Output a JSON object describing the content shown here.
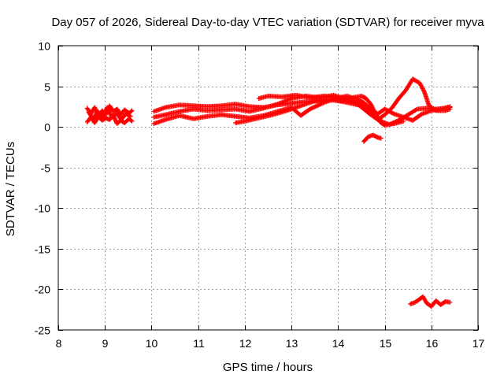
{
  "chart_data": {
    "type": "scatter",
    "title": "Day 057 of 2026, Sidereal Day-to-day VTEC variation (SDTVAR) for receiver myva",
    "xlabel": "GPS time / hours",
    "ylabel": "SDTVAR / TECUs",
    "xlim": [
      8,
      17
    ],
    "ylim": [
      -25,
      10
    ],
    "xticks": [
      8,
      9,
      10,
      11,
      12,
      13,
      14,
      15,
      16,
      17
    ],
    "yticks": [
      10,
      5,
      0,
      -5,
      -10,
      -15,
      -20,
      -25
    ],
    "xtick_labels": [
      "8",
      "9",
      "10",
      "11",
      "12",
      "13",
      "14",
      "15",
      "16",
      "17"
    ],
    "ytick_labels": [
      "10",
      "5",
      "0",
      "-5",
      "-10",
      "-15",
      "-20",
      "-25"
    ],
    "grid": true,
    "marker": "plus",
    "series": [
      {
        "name": "sdtvar",
        "color": "#ff0000",
        "tracks": [
          [
            [
              8.62,
              2.3
            ],
            [
              8.7,
              1.6
            ],
            [
              8.78,
              2.4
            ],
            [
              8.86,
              1.2
            ],
            [
              8.94,
              2.0
            ],
            [
              9.02,
              1.5
            ],
            [
              9.1,
              2.6
            ],
            [
              9.18,
              1.9
            ],
            [
              9.26,
              2.2
            ],
            [
              9.34,
              1.5
            ],
            [
              9.42,
              2.1
            ],
            [
              9.52,
              1.7
            ],
            [
              9.58,
              2.0
            ]
          ],
          [
            [
              8.62,
              0.6
            ],
            [
              8.7,
              1.2
            ],
            [
              8.78,
              0.5
            ],
            [
              8.86,
              1.3
            ],
            [
              8.94,
              0.8
            ],
            [
              9.02,
              1.1
            ],
            [
              9.1,
              0.9
            ],
            [
              9.18,
              1.4
            ],
            [
              9.26,
              0.4
            ],
            [
              9.34,
              0.8
            ],
            [
              9.42,
              0.5
            ],
            [
              9.52,
              1.0
            ],
            [
              9.58,
              0.7
            ]
          ],
          [
            [
              8.65,
              1.8
            ],
            [
              8.75,
              1.0
            ],
            [
              8.85,
              1.9
            ],
            [
              8.95,
              1.2
            ],
            [
              9.05,
              2.4
            ],
            [
              9.15,
              1.2
            ],
            [
              9.25,
              1.7
            ],
            [
              9.35,
              0.9
            ],
            [
              9.45,
              1.6
            ],
            [
              9.55,
              1.3
            ]
          ],
          [
            [
              10.05,
              1.9
            ],
            [
              10.3,
              2.4
            ],
            [
              10.6,
              2.7
            ],
            [
              10.9,
              2.6
            ],
            [
              11.2,
              2.5
            ],
            [
              11.5,
              2.6
            ],
            [
              11.8,
              2.8
            ],
            [
              12.1,
              2.5
            ],
            [
              12.4,
              2.4
            ],
            [
              12.7,
              2.7
            ],
            [
              13.0,
              2.9
            ],
            [
              13.3,
              3.1
            ],
            [
              13.6,
              3.2
            ],
            [
              13.9,
              3.3
            ],
            [
              14.2,
              3.0
            ],
            [
              14.5,
              2.6
            ],
            [
              14.7,
              2.0
            ],
            [
              14.85,
              1.2
            ],
            [
              14.95,
              0.6
            ],
            [
              15.1,
              0.3
            ],
            [
              15.3,
              0.8
            ],
            [
              15.5,
              1.5
            ],
            [
              15.7,
              2.2
            ],
            [
              15.9,
              2.3
            ],
            [
              16.1,
              2.2
            ],
            [
              16.3,
              2.3
            ],
            [
              16.4,
              2.4
            ]
          ],
          [
            [
              10.05,
              1.2
            ],
            [
              10.3,
              1.5
            ],
            [
              10.6,
              1.9
            ],
            [
              10.9,
              2.2
            ],
            [
              11.2,
              2.0
            ],
            [
              11.5,
              2.1
            ],
            [
              11.8,
              2.2
            ],
            [
              12.1,
              1.9
            ],
            [
              12.4,
              2.3
            ],
            [
              12.7,
              2.8
            ],
            [
              13.0,
              3.5
            ],
            [
              13.3,
              3.8
            ],
            [
              13.6,
              3.6
            ],
            [
              13.9,
              3.9
            ],
            [
              14.2,
              3.4
            ],
            [
              14.4,
              2.9
            ],
            [
              14.55,
              2.2
            ],
            [
              14.7,
              1.5
            ],
            [
              14.85,
              0.9
            ],
            [
              15.0,
              1.5
            ],
            [
              15.15,
              2.3
            ],
            [
              15.3,
              3.5
            ],
            [
              15.45,
              4.5
            ],
            [
              15.6,
              5.9
            ],
            [
              15.75,
              5.4
            ],
            [
              15.85,
              4.3
            ],
            [
              15.95,
              2.6
            ],
            [
              16.1,
              2.0
            ],
            [
              16.3,
              2.0
            ],
            [
              16.4,
              2.2
            ]
          ],
          [
            [
              10.05,
              0.4
            ],
            [
              10.3,
              0.9
            ],
            [
              10.6,
              1.4
            ],
            [
              10.9,
              1.0
            ],
            [
              11.2,
              1.3
            ],
            [
              11.5,
              1.5
            ],
            [
              11.8,
              1.3
            ],
            [
              12.1,
              1.1
            ],
            [
              12.4,
              1.4
            ],
            [
              12.7,
              1.9
            ],
            [
              13.0,
              2.4
            ],
            [
              13.2,
              1.4
            ],
            [
              13.4,
              2.2
            ],
            [
              13.7,
              3.0
            ],
            [
              14.0,
              3.6
            ],
            [
              14.2,
              3.8
            ],
            [
              14.4,
              3.4
            ],
            [
              14.55,
              3.0
            ],
            [
              14.7,
              2.2
            ],
            [
              14.85,
              1.6
            ],
            [
              15.0,
              2.2
            ],
            [
              15.2,
              1.6
            ],
            [
              15.4,
              1.2
            ],
            [
              15.6,
              0.8
            ],
            [
              15.8,
              1.6
            ],
            [
              16.0,
              2.0
            ],
            [
              16.2,
              2.2
            ],
            [
              16.4,
              2.5
            ]
          ],
          [
            [
              11.8,
              0.5
            ],
            [
              12.0,
              0.7
            ],
            [
              12.3,
              1.1
            ],
            [
              12.6,
              1.5
            ],
            [
              12.9,
              2.0
            ],
            [
              13.2,
              2.6
            ],
            [
              13.5,
              3.2
            ],
            [
              13.8,
              3.4
            ],
            [
              14.1,
              3.2
            ],
            [
              14.3,
              3.6
            ],
            [
              14.5,
              3.8
            ],
            [
              14.6,
              3.5
            ],
            [
              14.7,
              2.8
            ],
            [
              14.8,
              1.6
            ],
            [
              14.9,
              0.6
            ],
            [
              15.0,
              0.2
            ],
            [
              15.2,
              0.4
            ],
            [
              15.4,
              0.7
            ]
          ],
          [
            [
              12.3,
              3.5
            ],
            [
              12.5,
              3.8
            ],
            [
              12.8,
              3.7
            ],
            [
              13.1,
              3.9
            ],
            [
              13.4,
              3.6
            ],
            [
              13.7,
              3.8
            ],
            [
              14.0,
              3.6
            ],
            [
              14.3,
              3.2
            ],
            [
              14.5,
              2.7
            ],
            [
              14.6,
              2.2
            ]
          ],
          [
            [
              14.55,
              -1.8
            ],
            [
              14.65,
              -1.2
            ],
            [
              14.75,
              -1.0
            ],
            [
              14.85,
              -1.3
            ],
            [
              14.92,
              -1.4
            ]
          ],
          [
            [
              15.55,
              -21.8
            ],
            [
              15.65,
              -21.6
            ],
            [
              15.75,
              -21.2
            ],
            [
              15.82,
              -20.9
            ],
            [
              15.9,
              -21.7
            ],
            [
              16.0,
              -22.1
            ],
            [
              16.1,
              -21.4
            ],
            [
              16.2,
              -21.9
            ],
            [
              16.3,
              -21.5
            ],
            [
              16.4,
              -21.6
            ]
          ]
        ]
      }
    ]
  }
}
